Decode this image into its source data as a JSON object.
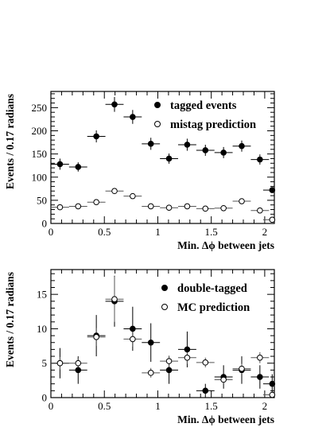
{
  "chart_data": [
    {
      "type": "scatter",
      "xlabel": "Min. Δϕ between jets",
      "ylabel": "Events / 0.17 radians",
      "xlim": [
        0,
        2.09
      ],
      "ylim": [
        0,
        285
      ],
      "xticks": [
        0,
        0.5,
        1,
        1.5,
        2
      ],
      "xtick_labels": [
        "0",
        "0.5",
        "1",
        "1.5",
        "2"
      ],
      "yticks": [
        0,
        50,
        100,
        150,
        200,
        250
      ],
      "ytick_labels": [
        "0",
        "50",
        "100",
        "150",
        "200",
        "250"
      ],
      "grid": false,
      "legend_position": "top-right",
      "bin_half_width": 0.085,
      "series": [
        {
          "name": "tagged events",
          "marker": "filled-circle",
          "x": [
            0.085,
            0.255,
            0.425,
            0.595,
            0.765,
            0.935,
            1.105,
            1.275,
            1.445,
            1.615,
            1.785,
            1.955,
            2.07
          ],
          "y": [
            128,
            122,
            188,
            257,
            230,
            172,
            140,
            170,
            158,
            153,
            167,
            138,
            72
          ],
          "err": [
            12,
            10,
            13,
            16,
            15,
            13,
            11,
            13,
            12,
            12,
            12,
            11,
            6
          ]
        },
        {
          "name": "mistag prediction",
          "marker": "open-circle",
          "x": [
            0.085,
            0.255,
            0.425,
            0.595,
            0.765,
            0.935,
            1.105,
            1.275,
            1.445,
            1.615,
            1.785,
            1.955,
            2.07
          ],
          "y": [
            35,
            37,
            46,
            70,
            59,
            37,
            34,
            37,
            32,
            33,
            48,
            28,
            8
          ],
          "err": [
            3,
            3,
            4,
            5,
            4,
            3,
            3,
            3,
            3,
            3,
            4,
            3,
            2
          ]
        }
      ]
    },
    {
      "type": "scatter",
      "xlabel": "Min. Δϕ between jets",
      "ylabel": "Events / 0.17 radians",
      "xlim": [
        0,
        2.09
      ],
      "ylim": [
        0,
        18.6
      ],
      "xticks": [
        0,
        0.5,
        1,
        1.5,
        2
      ],
      "xtick_labels": [
        "0",
        "0.5",
        "1",
        "1.5",
        "2"
      ],
      "yticks": [
        0,
        5,
        10,
        15
      ],
      "ytick_labels": [
        "0",
        "5",
        "10",
        "15"
      ],
      "grid": false,
      "legend_position": "top-right",
      "bin_half_width": 0.085,
      "series": [
        {
          "name": "double-tagged",
          "marker": "filled-circle",
          "x": [
            0.085,
            0.255,
            0.425,
            0.595,
            0.765,
            0.935,
            1.105,
            1.275,
            1.445,
            1.615,
            1.785,
            1.955,
            2.07
          ],
          "y": [
            5,
            4,
            9,
            14,
            10,
            8,
            4,
            7,
            1,
            3,
            4,
            3,
            2
          ],
          "err": [
            2.2,
            2.0,
            3.0,
            3.7,
            3.2,
            2.8,
            2.0,
            2.6,
            1.0,
            1.7,
            2.0,
            1.7,
            1.4
          ]
        },
        {
          "name": "MC prediction",
          "marker": "open-circle",
          "x": [
            0.085,
            0.255,
            0.425,
            0.595,
            0.765,
            0.935,
            1.105,
            1.275,
            1.445,
            1.615,
            1.785,
            1.955,
            2.07
          ],
          "y": [
            5.0,
            5.0,
            8.8,
            14.3,
            8.5,
            3.6,
            5.3,
            5.8,
            5.1,
            2.6,
            4.2,
            5.8,
            0.4
          ],
          "err": [
            0.9,
            0.8,
            1.3,
            3.3,
            1.1,
            0.7,
            0.8,
            0.9,
            0.7,
            0.6,
            0.7,
            0.8,
            0.3
          ]
        }
      ]
    }
  ]
}
